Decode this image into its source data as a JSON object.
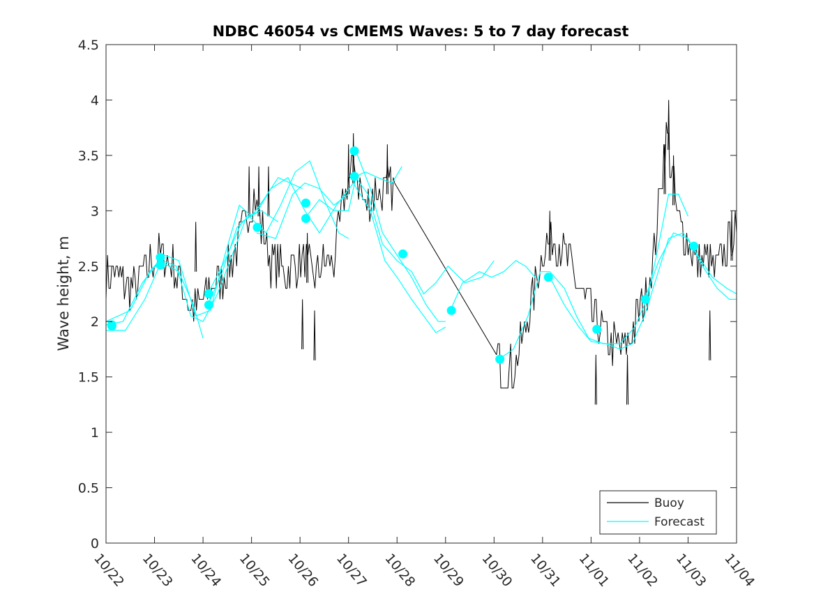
{
  "chart_data": {
    "type": "line",
    "title": "NDBC 46054 vs CMEMS Waves: 5 to 7 day forecast",
    "xlabel": "",
    "ylabel": "Wave height, m",
    "xlim": [
      0,
      13
    ],
    "ylim": [
      0,
      4.5
    ],
    "x_ticks": [
      0,
      1,
      2,
      3,
      4,
      5,
      6,
      7,
      8,
      9,
      10,
      11,
      12,
      13
    ],
    "x_tick_labels": [
      "10/22",
      "10/23",
      "10/24",
      "10/25",
      "10/26",
      "10/27",
      "10/28",
      "10/29",
      "10/30",
      "10/31",
      "11/01",
      "11/02",
      "11/03",
      "11/04"
    ],
    "y_ticks": [
      0,
      0.5,
      1,
      1.5,
      2,
      2.5,
      3,
      3.5,
      4,
      4.5
    ],
    "y_tick_labels": [
      "0",
      "0.5",
      "1",
      "1.5",
      "2",
      "2.5",
      "3",
      "3.5",
      "4",
      "4.5"
    ],
    "legend": {
      "position": "bottom-right",
      "entries": [
        "Buoy",
        "Forecast"
      ]
    },
    "colors": {
      "buoy": "#000000",
      "forecast": "#00ffff",
      "axis": "#262626"
    },
    "buoy_anchors": [
      [
        0.0,
        2.4
      ],
      [
        0.15,
        2.45
      ],
      [
        0.35,
        2.35
      ],
      [
        0.6,
        2.3
      ],
      [
        0.85,
        2.5
      ],
      [
        1.0,
        2.55
      ],
      [
        1.15,
        2.6
      ],
      [
        1.35,
        2.5
      ],
      [
        1.55,
        2.35
      ],
      [
        1.75,
        2.1
      ],
      [
        1.95,
        2.15
      ],
      [
        2.15,
        2.3
      ],
      [
        2.35,
        2.35
      ],
      [
        2.55,
        2.5
      ],
      [
        2.75,
        2.7
      ],
      [
        2.9,
        2.95
      ],
      [
        3.05,
        3.15
      ],
      [
        3.2,
        2.85
      ],
      [
        3.4,
        2.55
      ],
      [
        3.65,
        2.45
      ],
      [
        3.9,
        2.5
      ],
      [
        4.1,
        2.55
      ],
      [
        4.25,
        2.4
      ],
      [
        4.45,
        2.5
      ],
      [
        4.7,
        2.55
      ],
      [
        4.85,
        2.95
      ],
      [
        5.0,
        3.3
      ],
      [
        5.15,
        3.4
      ],
      [
        5.35,
        3.0
      ],
      [
        5.55,
        3.2
      ],
      [
        5.75,
        3.15
      ],
      [
        5.95,
        3.25
      ]
    ],
    "buoy_gap": [
      [
        5.95,
        3.25
      ],
      [
        8.05,
        1.7
      ]
    ],
    "buoy_anchors_2": [
      [
        8.05,
        1.7
      ],
      [
        8.2,
        1.55
      ],
      [
        8.4,
        1.58
      ],
      [
        8.6,
        1.85
      ],
      [
        8.85,
        2.3
      ],
      [
        9.0,
        2.65
      ],
      [
        9.2,
        2.75
      ],
      [
        9.4,
        2.7
      ],
      [
        9.6,
        2.45
      ],
      [
        9.85,
        2.2
      ],
      [
        10.05,
        2.05
      ],
      [
        10.3,
        1.85
      ],
      [
        10.5,
        1.8
      ],
      [
        10.7,
        1.75
      ],
      [
        10.9,
        1.95
      ],
      [
        11.1,
        2.2
      ],
      [
        11.3,
        2.6
      ],
      [
        11.45,
        3.3
      ],
      [
        11.55,
        3.7
      ],
      [
        11.65,
        3.4
      ],
      [
        11.8,
        2.9
      ],
      [
        12.0,
        2.7
      ],
      [
        12.2,
        2.55
      ],
      [
        12.4,
        2.55
      ],
      [
        12.6,
        2.45
      ],
      [
        12.8,
        2.7
      ],
      [
        13.0,
        2.8
      ]
    ],
    "buoy_spikes": [
      [
        11.52,
        3.6
      ],
      [
        11.6,
        4.0
      ],
      [
        11.7,
        3.5
      ],
      [
        5.1,
        3.7
      ],
      [
        5.0,
        3.6
      ],
      [
        5.8,
        3.6
      ],
      [
        1.85,
        2.9
      ],
      [
        2.95,
        3.4
      ],
      [
        3.15,
        3.4
      ],
      [
        3.35,
        3.4
      ],
      [
        4.15,
        2.8
      ],
      [
        4.3,
        2.1
      ],
      [
        4.05,
        2.2
      ],
      [
        9.15,
        3.0
      ],
      [
        10.1,
        1.7
      ],
      [
        10.75,
        1.7
      ],
      [
        12.45,
        2.1
      ],
      [
        12.9,
        3.0
      ]
    ],
    "forecast_series": [
      {
        "name": "Forecast",
        "points": [
          [
            0.0,
            1.92
          ],
          [
            0.4,
            1.92
          ],
          [
            0.8,
            2.2
          ],
          [
            1.15,
            2.55
          ],
          [
            1.45,
            2.5
          ],
          [
            1.75,
            2.05
          ],
          [
            2.0,
            2.0
          ],
          [
            2.3,
            2.25
          ],
          [
            2.6,
            2.6
          ],
          [
            2.9,
            2.95
          ],
          [
            3.2,
            3.0
          ],
          [
            3.55,
            2.9
          ]
        ]
      },
      {
        "name": "Forecast",
        "points": [
          [
            0.0,
            1.97
          ],
          [
            0.35,
            2.0
          ],
          [
            0.75,
            2.35
          ],
          [
            1.1,
            2.55
          ],
          [
            1.5,
            2.45
          ],
          [
            1.8,
            2.15
          ],
          [
            2.0,
            1.85
          ]
        ]
      },
      {
        "name": "Forecast",
        "points": [
          [
            0.0,
            2.0
          ],
          [
            0.5,
            2.1
          ],
          [
            0.9,
            2.45
          ],
          [
            1.2,
            2.6
          ],
          [
            1.5,
            2.55
          ],
          [
            1.85,
            2.05
          ],
          [
            2.15,
            2.1
          ],
          [
            2.45,
            2.6
          ],
          [
            2.75,
            3.05
          ],
          [
            3.0,
            2.95
          ],
          [
            3.25,
            3.1
          ],
          [
            3.55,
            3.3
          ],
          [
            4.05,
            3.2
          ]
        ]
      },
      {
        "name": "Forecast",
        "points": [
          [
            2.1,
            2.15
          ],
          [
            2.4,
            2.45
          ],
          [
            2.7,
            2.85
          ],
          [
            2.95,
            2.95
          ],
          [
            3.3,
            2.8
          ],
          [
            3.6,
            3.05
          ],
          [
            3.9,
            3.35
          ],
          [
            4.2,
            3.45
          ],
          [
            4.5,
            3.1
          ],
          [
            4.8,
            2.8
          ],
          [
            5.0,
            2.75
          ]
        ]
      },
      {
        "name": "Forecast",
        "points": [
          [
            2.1,
            2.25
          ],
          [
            2.45,
            2.55
          ],
          [
            2.8,
            2.9
          ],
          [
            3.1,
            2.98
          ],
          [
            3.4,
            3.2
          ],
          [
            3.75,
            3.3
          ],
          [
            4.1,
            3.0
          ],
          [
            4.4,
            2.8
          ],
          [
            4.75,
            3.05
          ],
          [
            5.1,
            3.25
          ],
          [
            5.45,
            3.0
          ],
          [
            5.75,
            2.55
          ],
          [
            6.0,
            2.4
          ],
          [
            6.3,
            2.2
          ],
          [
            6.55,
            2.05
          ],
          [
            6.8,
            1.9
          ],
          [
            7.0,
            1.95
          ]
        ]
      },
      {
        "name": "Forecast",
        "points": [
          [
            4.1,
            2.93
          ],
          [
            4.4,
            3.1
          ],
          [
            4.7,
            3.0
          ],
          [
            5.0,
            3.0
          ],
          [
            5.15,
            3.3
          ],
          [
            5.4,
            3.15
          ],
          [
            5.7,
            2.7
          ],
          [
            6.0,
            2.55
          ],
          [
            6.3,
            2.45
          ],
          [
            6.55,
            2.25
          ],
          [
            6.8,
            2.35
          ],
          [
            7.05,
            2.5
          ],
          [
            7.4,
            2.35
          ],
          [
            7.75,
            2.4
          ],
          [
            8.0,
            2.55
          ]
        ]
      },
      {
        "name": "Forecast",
        "points": [
          [
            5.15,
            3.54
          ],
          [
            5.45,
            3.2
          ],
          [
            5.7,
            2.8
          ],
          [
            6.0,
            2.6
          ],
          [
            6.3,
            2.4
          ],
          [
            6.6,
            2.15
          ],
          [
            6.85,
            2.0
          ],
          [
            7.0,
            2.0
          ]
        ]
      },
      {
        "name": "Forecast",
        "points": [
          [
            5.15,
            3.31
          ],
          [
            5.35,
            3.35
          ],
          [
            5.6,
            3.3
          ],
          [
            5.9,
            3.25
          ],
          [
            6.1,
            3.4
          ]
        ]
      },
      {
        "name": "Forecast",
        "points": [
          [
            7.1,
            2.1
          ],
          [
            7.35,
            2.35
          ],
          [
            7.7,
            2.45
          ],
          [
            7.95,
            2.4
          ],
          [
            8.2,
            2.45
          ],
          [
            8.45,
            2.55
          ],
          [
            8.65,
            2.5
          ],
          [
            8.85,
            2.4
          ]
        ]
      },
      {
        "name": "Forecast",
        "points": [
          [
            8.1,
            1.66
          ],
          [
            8.4,
            1.75
          ],
          [
            8.7,
            2.05
          ],
          [
            8.95,
            2.45
          ],
          [
            9.15,
            2.45
          ],
          [
            9.45,
            2.3
          ],
          [
            9.7,
            2.05
          ],
          [
            9.95,
            1.85
          ],
          [
            10.25,
            1.8
          ],
          [
            10.6,
            1.8
          ],
          [
            10.9,
            1.95
          ],
          [
            11.15,
            2.2
          ],
          [
            11.35,
            2.6
          ],
          [
            11.6,
            3.15
          ],
          [
            11.8,
            3.15
          ],
          [
            12.0,
            2.95
          ]
        ]
      },
      {
        "name": "Forecast",
        "points": [
          [
            9.15,
            2.4
          ],
          [
            9.45,
            2.15
          ],
          [
            9.75,
            1.95
          ],
          [
            10.0,
            1.82
          ],
          [
            10.3,
            1.8
          ],
          [
            10.6,
            1.75
          ],
          [
            10.85,
            1.8
          ],
          [
            11.1,
            2.05
          ],
          [
            11.35,
            2.4
          ],
          [
            11.6,
            2.75
          ],
          [
            11.9,
            2.8
          ],
          [
            12.2,
            2.6
          ],
          [
            12.5,
            2.4
          ],
          [
            12.8,
            2.3
          ],
          [
            13.0,
            2.25
          ]
        ]
      },
      {
        "name": "Forecast",
        "points": [
          [
            11.1,
            2.2
          ],
          [
            11.4,
            2.55
          ],
          [
            11.7,
            2.8
          ],
          [
            12.0,
            2.75
          ],
          [
            12.3,
            2.5
          ],
          [
            12.6,
            2.3
          ],
          [
            12.85,
            2.2
          ],
          [
            13.0,
            2.2
          ]
        ]
      },
      {
        "name": "Forecast",
        "points": [
          [
            3.1,
            2.8
          ],
          [
            3.5,
            2.75
          ],
          [
            3.85,
            3.15
          ],
          [
            4.1,
            3.25
          ],
          [
            4.4,
            3.2
          ],
          [
            4.7,
            3.05
          ],
          [
            5.0,
            3.15
          ]
        ]
      }
    ],
    "forecast_markers": [
      [
        0.12,
        1.97
      ],
      [
        0.12,
        1.96
      ],
      [
        1.12,
        2.58
      ],
      [
        1.12,
        2.51
      ],
      [
        2.12,
        2.25
      ],
      [
        2.12,
        2.15
      ],
      [
        3.12,
        2.85
      ],
      [
        4.12,
        3.07
      ],
      [
        4.12,
        2.93
      ],
      [
        5.12,
        3.54
      ],
      [
        5.12,
        3.31
      ],
      [
        6.12,
        2.61
      ],
      [
        7.12,
        2.1
      ],
      [
        8.12,
        1.66
      ],
      [
        9.12,
        2.4
      ],
      [
        10.12,
        1.93
      ],
      [
        11.12,
        2.2
      ],
      [
        12.12,
        2.68
      ]
    ]
  }
}
